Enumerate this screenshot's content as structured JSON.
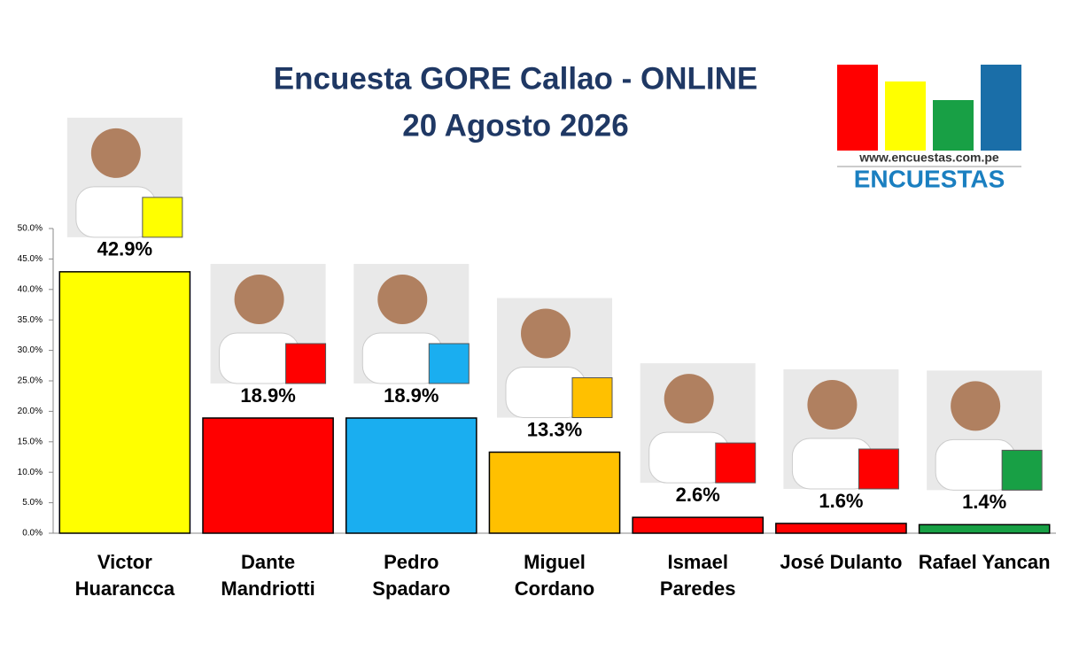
{
  "chart_data": {
    "type": "bar",
    "title": "Encuesta GORE Callao - ONLINE",
    "subtitle": "20 Agosto 2026",
    "brand_url": "www.encuestas.com.pe",
    "brand_name": "ENCUESTAS",
    "categories": [
      "Victor Huarancca",
      "Dante Mandriotti",
      "Pedro Spadaro",
      "Miguel Cordano",
      "Ismael Paredes",
      "José Dulanto",
      "Rafael Yancan"
    ],
    "values": [
      42.9,
      18.9,
      18.9,
      13.3,
      2.6,
      1.6,
      1.4
    ],
    "value_labels": [
      "42.9%",
      "18.9%",
      "18.9%",
      "13.3%",
      "2.6%",
      "1.6%",
      "1.4%"
    ],
    "colors": [
      "#ffff00",
      "#ff0000",
      "#1aaef0",
      "#ffc000",
      "#ff0000",
      "#ff0000",
      "#18a045"
    ],
    "ylim": [
      0,
      50
    ],
    "yticks": [
      {
        "value": 0,
        "label": "0.0%"
      },
      {
        "value": 5,
        "label": "5.0%"
      },
      {
        "value": 10,
        "label": "10.0%"
      },
      {
        "value": 15,
        "label": "15.0%"
      },
      {
        "value": 20,
        "label": "20.0%"
      },
      {
        "value": 25,
        "label": "25.0%"
      },
      {
        "value": 30,
        "label": "30.0%"
      },
      {
        "value": 35,
        "label": "35.0%"
      },
      {
        "value": 40,
        "label": "40.0%"
      },
      {
        "value": 45,
        "label": "45.0%"
      },
      {
        "value": 50,
        "label": "50.0%"
      }
    ],
    "grid": false
  }
}
